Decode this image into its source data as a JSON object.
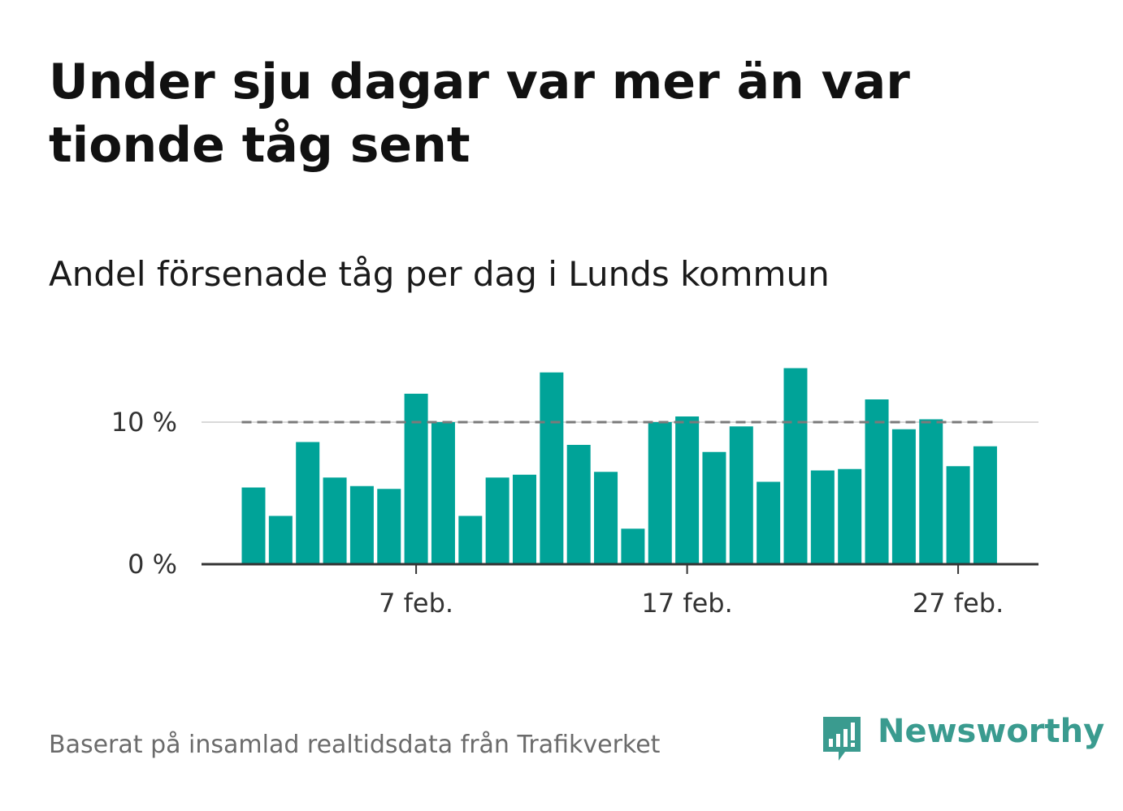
{
  "title": "Under sju dagar var mer än var tionde tåg sent",
  "subtitle": "Andel försenade tåg per dag i Lunds kommun",
  "source": "Baserat på insamlad realtidsdata från Trafikverket",
  "brand": {
    "name": "Newsworthy",
    "icon": "newsworthy-chat-bars-icon",
    "color": "#3a9b8f"
  },
  "chart_data": {
    "type": "bar",
    "title": "Andel försenade tåg per dag i Lunds kommun",
    "xlabel": "",
    "ylabel": "",
    "x_start_day": 1,
    "x_month": "feb.",
    "values": [
      5.4,
      3.4,
      8.6,
      6.1,
      5.5,
      5.3,
      12.0,
      10.0,
      3.4,
      6.1,
      6.3,
      13.5,
      8.4,
      6.5,
      2.5,
      10.0,
      10.4,
      7.9,
      9.7,
      5.8,
      13.8,
      6.6,
      6.7,
      11.6,
      9.5,
      10.2,
      6.9,
      8.3
    ],
    "ylim": [
      0,
      15
    ],
    "yticks": [
      0,
      10
    ],
    "ytick_labels": [
      "0 %",
      "10 %"
    ],
    "xticks_days": [
      7,
      17,
      27
    ],
    "xtick_labels": [
      "7 feb.",
      "17 feb.",
      "27 feb."
    ],
    "reference_line": {
      "value": 10,
      "style": "dashed"
    },
    "bar_color": "#00a398",
    "grid": true,
    "legend": "none"
  }
}
